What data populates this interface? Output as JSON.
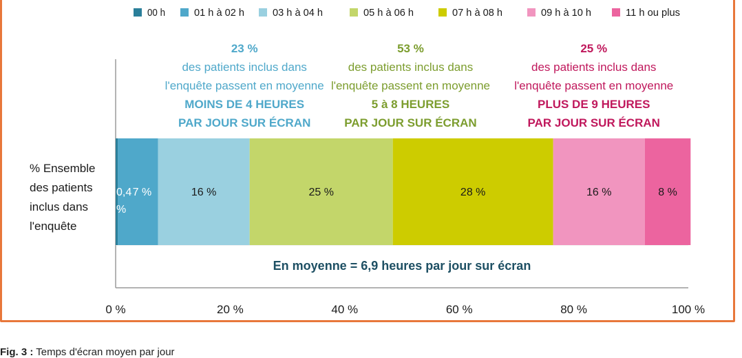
{
  "chart_data": {
    "type": "bar",
    "orientation": "horizontal-stacked",
    "categories": [
      "% Ensemble des patients inclus dans l'enquête"
    ],
    "category_label_lines": [
      "% Ensemble",
      "des patients",
      "inclus dans",
      "l'enquête"
    ],
    "series": [
      {
        "name": "00 h",
        "values": [
          0.4
        ],
        "label_lines": [
          "0,4",
          "%"
        ],
        "color": "#2a7f9a"
      },
      {
        "name": "01 h à 02 h",
        "values": [
          7
        ],
        "label_lines": [
          "7 %"
        ],
        "color": "#4fa8ca"
      },
      {
        "name": "03 h à 04 h",
        "values": [
          16
        ],
        "label_lines": [
          "16 %"
        ],
        "color": "#9ad0e0"
      },
      {
        "name": "05 h à 06 h",
        "values": [
          25
        ],
        "label_lines": [
          "25 %"
        ],
        "color": "#c3d66a"
      },
      {
        "name": "07 h à 08 h",
        "values": [
          28
        ],
        "label_lines": [
          "28 %"
        ],
        "color": "#cdcc00"
      },
      {
        "name": "09 h à 10 h",
        "values": [
          16
        ],
        "label_lines": [
          "16 %"
        ],
        "color": "#f195bf"
      },
      {
        "name": "11 h ou plus",
        "values": [
          8
        ],
        "label_lines": [
          "8 %"
        ],
        "color": "#ec649f"
      }
    ],
    "x_ticks": [
      "0 %",
      "20 %",
      "40 %",
      "60 %",
      "80 %",
      "100 %"
    ],
    "xlim": [
      0,
      100
    ],
    "legend_position": "top",
    "grid": false,
    "annotations": [
      {
        "lines": [
          "23 %",
          "des patients inclus dans",
          "l'enquête passent en moyenne",
          "MOINS DE 4 HEURES",
          "PAR JOUR SUR ÉCRAN"
        ],
        "color": "#4fa8ca",
        "center_x": 22.5
      },
      {
        "lines": [
          "53 %",
          "des patients inclus dans",
          "l'enquête passent en moyenne",
          "5 à 8 HEURES",
          "PAR JOUR SUR ÉCRAN"
        ],
        "color": "#7c9d2e",
        "center_x": 51.5
      },
      {
        "lines": [
          "25 %",
          "des patients inclus dans",
          "l'enquête passent en moyenne",
          "PLUS DE 9 HEURES",
          "PAR JOUR SUR ÉCRAN"
        ],
        "color": "#c0185c",
        "center_x": 83.5
      }
    ],
    "average_note": "En moyenne = 6,9 heures par jour sur écran",
    "average_note_color": "#1d4f63"
  },
  "caption": {
    "prefix": "Fig. 3 :",
    "text": "Temps d'écran moyen par jour"
  }
}
